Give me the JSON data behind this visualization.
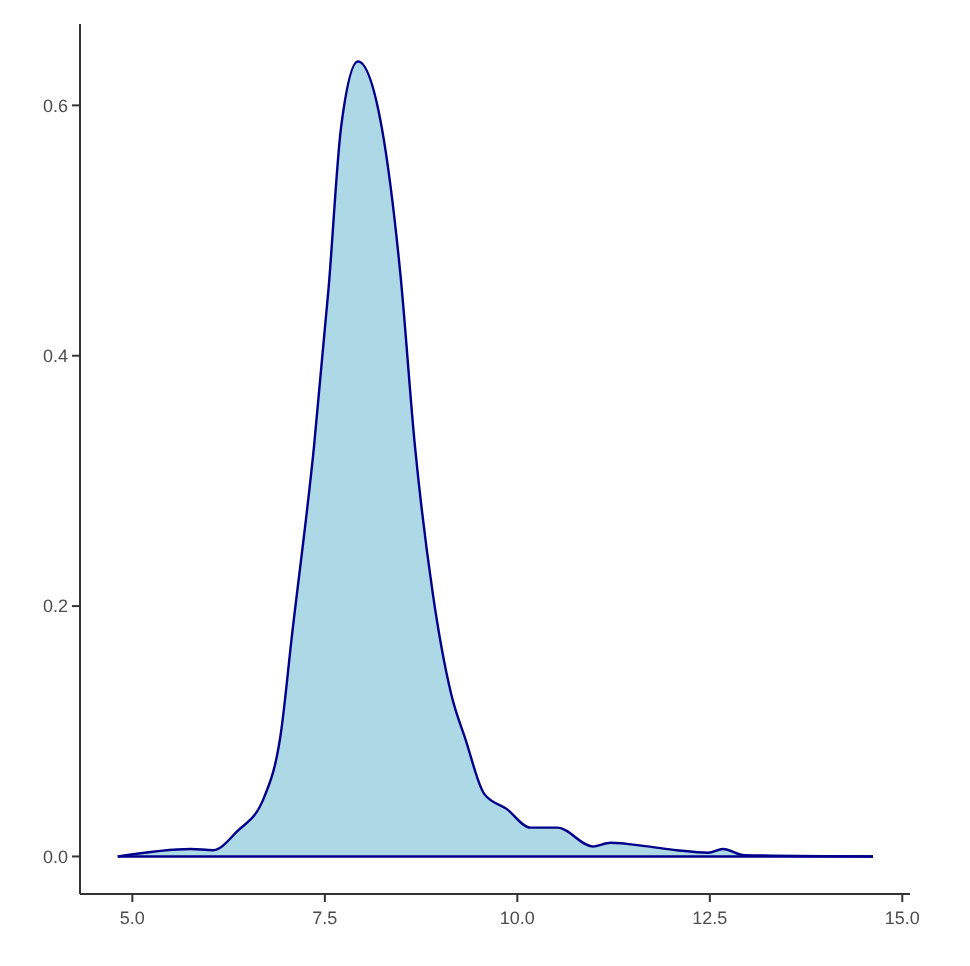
{
  "chart_data": {
    "type": "area",
    "x": [
      4.81,
      5.76,
      6.05,
      6.36,
      6.71,
      6.93,
      7.07,
      7.36,
      7.55,
      7.71,
      7.93,
      8.24,
      8.48,
      8.67,
      8.9,
      9.14,
      9.33,
      9.57,
      9.86,
      10.17,
      10.52,
      10.98,
      11.21,
      11.69,
      12.07,
      12.48,
      12.67,
      12.95,
      14.62
    ],
    "series": [
      {
        "color": "#00008b",
        "values": [
          0,
          0.006,
          0.005,
          0.02,
          0.047,
          0.099,
          0.175,
          0.328,
          0.455,
          0.582,
          0.635,
          0.582,
          0.466,
          0.328,
          0.211,
          0.13,
          0.093,
          0.05,
          0.038,
          0.023,
          0.023,
          0.008,
          0.011,
          0.008,
          0.005,
          0.003,
          0.006,
          0.001,
          0
        ]
      }
    ],
    "xlim": [
      4.32,
      15.1
    ],
    "ylim": [
      -0.03,
      0.665
    ],
    "xticks": [
      {
        "value": 5,
        "label": "5.0"
      },
      {
        "value": 7.5,
        "label": "7.5"
      },
      {
        "value": 10,
        "label": "10.0"
      },
      {
        "value": 12.5,
        "label": "12.5"
      },
      {
        "value": 15,
        "label": "15.0"
      }
    ],
    "yticks": [
      {
        "value": 0,
        "label": "0.0"
      },
      {
        "value": 0.2,
        "label": "0.2"
      },
      {
        "value": 0.4,
        "label": "0.4"
      },
      {
        "value": 0.6,
        "label": "0.6"
      }
    ],
    "grid": false
  }
}
